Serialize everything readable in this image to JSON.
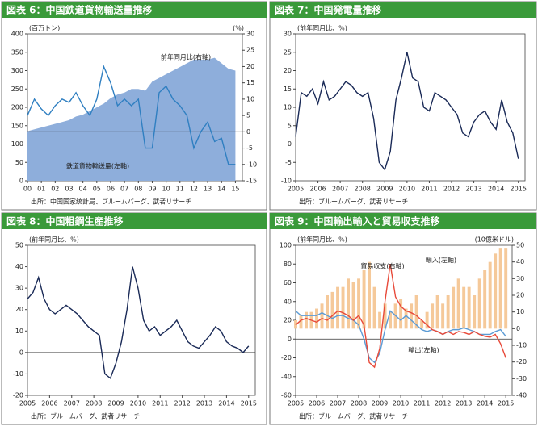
{
  "chart_data": [
    {
      "type": "combo",
      "title": "図表 6：中国鉄道貨物輸送量推移",
      "y_unit": "(百万トン)",
      "y2_unit": "(%)",
      "source": "出所：中国国家統計局、ブルームバーグ、武者リサーチ",
      "x": [
        2000,
        2000.5,
        2001,
        2001.5,
        2002,
        2002.5,
        2003,
        2003.5,
        2004,
        2004.5,
        2005,
        2005.5,
        2006,
        2006.5,
        2007,
        2007.5,
        2008,
        2008.5,
        2009,
        2009.5,
        2010,
        2010.5,
        2011,
        2011.5,
        2012,
        2012.5,
        2013,
        2013.5,
        2014,
        2014.5,
        2015
      ],
      "xlim": [
        2000,
        2015.5
      ],
      "xticks": [
        {
          "value": 2000,
          "label": "00"
        },
        {
          "value": 2001,
          "label": "01"
        },
        {
          "value": 2002,
          "label": "02"
        },
        {
          "value": 2003,
          "label": "03"
        },
        {
          "value": 2004,
          "label": "04"
        },
        {
          "value": 2005,
          "label": "05"
        },
        {
          "value": 2006,
          "label": "06"
        },
        {
          "value": 2007,
          "label": "07"
        },
        {
          "value": 2008,
          "label": "08"
        },
        {
          "value": 2009,
          "label": "09"
        },
        {
          "value": 2010,
          "label": "10"
        },
        {
          "value": 2011,
          "label": "11"
        },
        {
          "value": 2012,
          "label": "12"
        },
        {
          "value": 2013,
          "label": "13"
        },
        {
          "value": 2014,
          "label": "14"
        },
        {
          "value": 2015,
          "label": "15"
        }
      ],
      "ylim": [
        0,
        400
      ],
      "yticks": [
        0,
        50,
        100,
        150,
        200,
        250,
        300,
        350,
        400
      ],
      "y2lim": [
        -15,
        30
      ],
      "y2ticks": [
        -15,
        -10,
        -5,
        0,
        5,
        10,
        15,
        20,
        25,
        30
      ],
      "series": [
        {
          "name": "鉄道貨物輸送量(左軸)",
          "kind": "area",
          "color": "#8eaedb",
          "values": [
            135,
            140,
            145,
            150,
            155,
            160,
            165,
            175,
            180,
            190,
            200,
            210,
            225,
            235,
            240,
            250,
            250,
            245,
            270,
            280,
            290,
            300,
            310,
            320,
            330,
            330,
            330,
            335,
            320,
            305,
            300
          ]
        },
        {
          "name": "前年同月比(右軸)",
          "kind": "line",
          "axis": "y2",
          "color": "#2f7fc1",
          "values": [
            5,
            10,
            7,
            5,
            8,
            10,
            9,
            12,
            8,
            5,
            10,
            20,
            15,
            8,
            10,
            8,
            10,
            -5,
            -5,
            12,
            14,
            10,
            8,
            5,
            -5,
            0,
            3,
            -3,
            -2,
            -10,
            -10
          ]
        }
      ]
    },
    {
      "type": "combo",
      "title": "図表 7：中国発電量推移",
      "y_unit": "(前年同月比、%)",
      "source": "出所：ブルームバーグ、武者リサーチ",
      "x": [
        2005,
        2005.25,
        2005.5,
        2005.75,
        2006,
        2006.25,
        2006.5,
        2006.75,
        2007,
        2007.25,
        2007.5,
        2007.75,
        2008,
        2008.25,
        2008.5,
        2008.75,
        2009,
        2009.25,
        2009.5,
        2009.75,
        2010,
        2010.25,
        2010.5,
        2010.75,
        2011,
        2011.25,
        2011.5,
        2011.75,
        2012,
        2012.25,
        2012.5,
        2012.75,
        2013,
        2013.25,
        2013.5,
        2013.75,
        2014,
        2014.25,
        2014.5,
        2014.75,
        2015
      ],
      "xlim": [
        2005,
        2015.3
      ],
      "xticks": [
        2005,
        2006,
        2007,
        2008,
        2009,
        2010,
        2011,
        2012,
        2013,
        2014,
        2015
      ],
      "ylim": [
        -10,
        30
      ],
      "yticks": [
        -10,
        -5,
        0,
        5,
        10,
        15,
        20,
        25,
        30
      ],
      "series": [
        {
          "kind": "line",
          "color": "#1a2a57",
          "values": [
            2,
            14,
            13,
            15,
            11,
            17,
            12,
            13,
            15,
            17,
            16,
            14,
            13,
            14,
            7,
            -5,
            -7,
            -2,
            12,
            18,
            25,
            18,
            17,
            10,
            9,
            14,
            13,
            12,
            10,
            8,
            3,
            2,
            6,
            8,
            9,
            6,
            4,
            12,
            6,
            3,
            -4
          ]
        }
      ]
    },
    {
      "type": "combo",
      "title": "図表 8：中国粗鋼生産推移",
      "y_unit": "(前年同月比、%)",
      "source": "出所：ブルームバーグ、武者リサーチ",
      "x": [
        2005,
        2005.25,
        2005.5,
        2005.75,
        2006,
        2006.25,
        2006.5,
        2006.75,
        2007,
        2007.25,
        2007.5,
        2007.75,
        2008,
        2008.25,
        2008.5,
        2008.75,
        2009,
        2009.25,
        2009.5,
        2009.75,
        2010,
        2010.25,
        2010.5,
        2010.75,
        2011,
        2011.25,
        2011.5,
        2011.75,
        2012,
        2012.25,
        2012.5,
        2012.75,
        2013,
        2013.25,
        2013.5,
        2013.75,
        2014,
        2014.25,
        2014.5,
        2014.75,
        2015
      ],
      "xlim": [
        2005,
        2015.3
      ],
      "xticks": [
        2005,
        2006,
        2007,
        2008,
        2009,
        2010,
        2011,
        2012,
        2013,
        2014,
        2015
      ],
      "ylim": [
        -20,
        50
      ],
      "yticks": [
        -20,
        -10,
        0,
        10,
        20,
        30,
        40,
        50
      ],
      "series": [
        {
          "kind": "line",
          "color": "#1a2a57",
          "values": [
            25,
            28,
            35,
            25,
            20,
            18,
            20,
            22,
            20,
            18,
            15,
            12,
            10,
            8,
            -10,
            -12,
            -5,
            5,
            20,
            40,
            30,
            15,
            10,
            12,
            8,
            10,
            12,
            15,
            10,
            5,
            3,
            2,
            5,
            8,
            12,
            10,
            5,
            3,
            2,
            0,
            3
          ]
        }
      ]
    },
    {
      "type": "combo",
      "title": "図表 9：中国輸出輸入と貿易収支推移",
      "y_unit": "(前年同月比、%)",
      "y2_unit": "(10億米ドル)",
      "source": "出所：ブルームバーグ、武者リサーチ",
      "x": [
        2005,
        2005.25,
        2005.5,
        2005.75,
        2006,
        2006.25,
        2006.5,
        2006.75,
        2007,
        2007.25,
        2007.5,
        2007.75,
        2008,
        2008.25,
        2008.5,
        2008.75,
        2009,
        2009.25,
        2009.5,
        2009.75,
        2010,
        2010.25,
        2010.5,
        2010.75,
        2011,
        2011.25,
        2011.5,
        2011.75,
        2012,
        2012.25,
        2012.5,
        2012.75,
        2013,
        2013.25,
        2013.5,
        2013.75,
        2014,
        2014.25,
        2014.5,
        2014.75,
        2015
      ],
      "xlim": [
        2005,
        2015.3
      ],
      "xticks": [
        2005,
        2006,
        2007,
        2008,
        2009,
        2010,
        2011,
        2012,
        2013,
        2014,
        2015
      ],
      "ylim": [
        -60,
        100
      ],
      "yticks": [
        -60,
        -40,
        -20,
        0,
        20,
        40,
        60,
        80,
        100
      ],
      "y2lim": [
        -40,
        50
      ],
      "y2ticks": [
        -40,
        -30,
        -20,
        -10,
        0,
        10,
        20,
        30,
        40,
        50
      ],
      "series": [
        {
          "name": "貿易収支(右軸)",
          "kind": "bar",
          "axis": "y2",
          "color": "#f5c99a",
          "values": [
            5,
            8,
            10,
            10,
            12,
            15,
            20,
            22,
            25,
            25,
            30,
            28,
            30,
            35,
            40,
            25,
            10,
            15,
            10,
            15,
            18,
            12,
            15,
            20,
            5,
            10,
            15,
            20,
            15,
            20,
            25,
            30,
            25,
            25,
            20,
            30,
            35,
            40,
            45,
            48,
            48
          ]
        },
        {
          "name": "輸出(左軸)",
          "kind": "line",
          "color": "#5b9bd5",
          "values": [
            30,
            25,
            25,
            25,
            25,
            28,
            25,
            22,
            25,
            25,
            22,
            20,
            15,
            0,
            -20,
            -25,
            -15,
            10,
            30,
            25,
            20,
            25,
            20,
            15,
            10,
            8,
            10,
            8,
            5,
            8,
            10,
            10,
            12,
            10,
            8,
            5,
            5,
            5,
            8,
            10,
            3
          ]
        },
        {
          "name": "輸入(左軸)",
          "kind": "line",
          "color": "#e84a3a",
          "values": [
            15,
            20,
            22,
            20,
            18,
            22,
            20,
            25,
            30,
            28,
            25,
            20,
            25,
            15,
            -25,
            -30,
            -10,
            40,
            80,
            45,
            35,
            30,
            28,
            25,
            20,
            15,
            10,
            8,
            5,
            8,
            5,
            8,
            7,
            5,
            8,
            5,
            3,
            2,
            5,
            -5,
            -20
          ]
        }
      ]
    }
  ]
}
